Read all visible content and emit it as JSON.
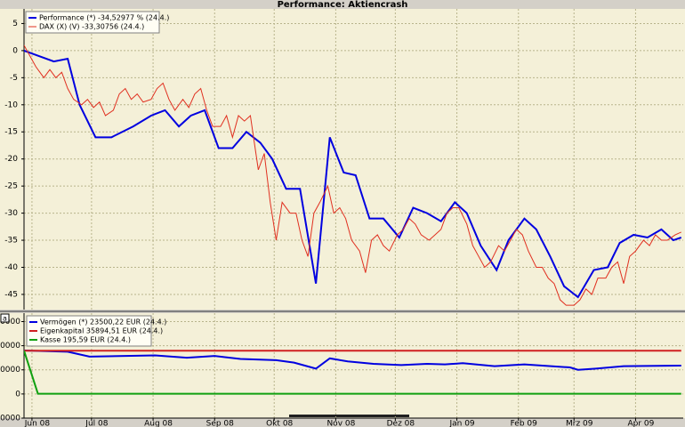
{
  "chart_data": [
    {
      "type": "line",
      "title": "Performance: Aktiencrash",
      "ylim": [
        -47.8,
        7.7
      ],
      "yticks": [
        5,
        0,
        -5,
        -10,
        -15,
        -20,
        -25,
        -30,
        -35,
        -40,
        -45
      ],
      "grid": true,
      "series": [
        {
          "name": "Performance (*) -34,52977 % (24.4.)",
          "color": "#0000e0",
          "width": 2,
          "x": [
            -4,
            11,
            18,
            24,
            32,
            40,
            51,
            60,
            67,
            74,
            80,
            87,
            94,
            101,
            108,
            115,
            121,
            128,
            135,
            143,
            150,
            157,
            163,
            170,
            177,
            185,
            192,
            199,
            206,
            213,
            219,
            226,
            234,
            240,
            248,
            254,
            261,
            268,
            275,
            283,
            290,
            296,
            303,
            310,
            317,
            323,
            327
          ],
          "values": [
            0,
            -2,
            -1.5,
            -10,
            -16,
            -16,
            -14,
            -12,
            -11,
            -14,
            -12,
            -11,
            -18,
            -18,
            -15,
            -17,
            -20,
            -25.5,
            -25.5,
            -43,
            -16,
            -22.5,
            -23,
            -31,
            -31,
            -34.5,
            -29,
            -30,
            -31.5,
            -28,
            -30,
            -36,
            -40.5,
            -35,
            -31,
            -33,
            -38,
            -43.5,
            -45.5,
            -40.5,
            -40,
            -35.5,
            -34,
            -34.5,
            -33,
            -35,
            -34.5
          ]
        },
        {
          "name": "DAX (X) (V) -33,30756 (24.4.)",
          "color": "#e03020",
          "width": 1,
          "x": [
            -4,
            -1,
            2,
            6,
            9,
            12,
            15,
            18,
            21,
            25,
            28,
            31,
            34,
            37,
            41,
            44,
            47,
            50,
            53,
            56,
            60,
            63,
            66,
            69,
            72,
            76,
            79,
            82,
            85,
            88,
            91,
            95,
            98,
            101,
            104,
            107,
            110,
            114,
            117,
            120,
            123,
            126,
            130,
            133,
            136,
            139,
            142,
            145,
            149,
            152,
            155,
            158,
            161,
            165,
            168,
            171,
            174,
            177,
            180,
            184,
            187,
            190,
            193,
            196,
            200,
            203,
            206,
            209,
            212,
            215,
            219,
            222,
            225,
            228,
            231,
            235,
            238,
            241,
            244,
            247,
            250,
            254,
            257,
            260,
            263,
            266,
            269,
            273,
            276,
            279,
            282,
            285,
            289,
            292,
            295,
            298,
            301,
            304,
            308,
            311,
            314,
            317,
            320,
            324,
            327
          ],
          "values": [
            1,
            -1,
            -3,
            -5,
            -3.5,
            -5,
            -4,
            -7,
            -9,
            -10,
            -9,
            -10.5,
            -9.5,
            -12,
            -11,
            -8,
            -7,
            -9,
            -8,
            -9.5,
            -9,
            -7,
            -6,
            -9,
            -11,
            -9,
            -10.5,
            -8,
            -7,
            -11,
            -14,
            -14,
            -12,
            -16,
            -12,
            -13,
            -12,
            -22,
            -19,
            -28,
            -35,
            -28,
            -30,
            -30,
            -35,
            -38,
            -30,
            -28,
            -25,
            -30,
            -29,
            -31,
            -35,
            -37,
            -41,
            -35,
            -34,
            -36,
            -37,
            -34,
            -33,
            -31,
            -32,
            -34,
            -35,
            -34,
            -33,
            -30,
            -29,
            -29,
            -32,
            -36,
            -38,
            -40,
            -39,
            -36,
            -37,
            -35,
            -33,
            -34,
            -37,
            -40,
            -40,
            -42,
            -43,
            -46,
            -47,
            -47,
            -46,
            -44,
            -45,
            -42,
            -42,
            -40,
            -39,
            -43,
            -38,
            -37,
            -35,
            -36,
            -34,
            -35,
            -35,
            -34,
            -33.5
          ]
        }
      ]
    },
    {
      "type": "line",
      "label": "a",
      "ylim": [
        -20000,
        67000
      ],
      "yticks": [
        -20000,
        0,
        20000,
        40000,
        60000
      ],
      "grid": true,
      "xlim": [
        -4,
        328
      ],
      "xticks": [
        {
          "value": 0,
          "label": "Jun 08"
        },
        {
          "value": 30,
          "label": "Jul 08"
        },
        {
          "value": 61,
          "label": "Aug 08"
        },
        {
          "value": 92,
          "label": "Sep 08"
        },
        {
          "value": 122,
          "label": "Okt 08"
        },
        {
          "value": 153,
          "label": "Nov 08"
        },
        {
          "value": 183,
          "label": "Dez 08"
        },
        {
          "value": 214,
          "label": "Jan 09"
        },
        {
          "value": 245,
          "label": "Feb 09"
        },
        {
          "value": 273,
          "label": "Mrz 09"
        },
        {
          "value": 304,
          "label": "Apr 09"
        }
      ],
      "series": [
        {
          "name": "Vermögen (*) 23500,22 EUR (24.4.)",
          "color": "#0000e0",
          "width": 2,
          "x": [
            -4,
            18,
            29,
            62,
            78,
            92,
            105,
            123,
            132,
            143,
            150,
            159,
            172,
            186,
            199,
            208,
            217,
            233,
            248,
            271,
            275,
            284,
            298,
            327
          ],
          "values": [
            36000,
            35000,
            31000,
            32000,
            30000,
            31500,
            29000,
            28000,
            26000,
            21000,
            29500,
            27000,
            25000,
            24000,
            25000,
            24500,
            25500,
            23000,
            24500,
            22000,
            20000,
            21000,
            23000,
            23500.22
          ]
        },
        {
          "name": "Eigenkapital 35894,51 EUR (24.4.)",
          "color": "#d02020",
          "width": 2,
          "x": [
            -4,
            327
          ],
          "values": [
            35894.51,
            35894.51
          ]
        },
        {
          "name": "Kasse 195,59 EUR (24.4.)",
          "color": "#10a010",
          "width": 2,
          "x": [
            -4,
            3,
            327
          ],
          "values": [
            35894.51,
            195.59,
            195.59
          ]
        }
      ]
    }
  ]
}
